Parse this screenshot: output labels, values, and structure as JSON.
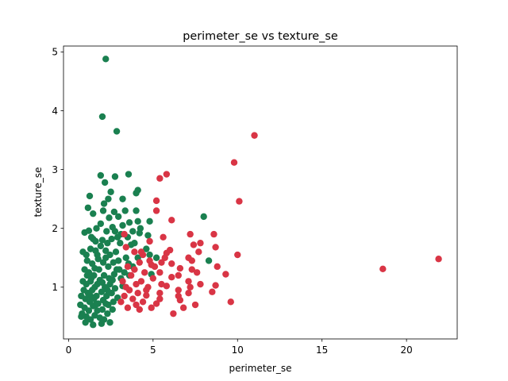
{
  "chart_data": {
    "type": "scatter",
    "title": "perimeter_se vs texture_se",
    "xlabel": "perimeter_se",
    "ylabel": "texture_se",
    "xlim": [
      -0.3,
      23.0
    ],
    "ylim": [
      0.12,
      5.1
    ],
    "xticks": [
      0,
      5,
      10,
      15,
      20
    ],
    "yticks": [
      1,
      2,
      3,
      4,
      5
    ],
    "grid": false,
    "series": [
      {
        "color": "#1a8050",
        "points": [
          [
            2.2,
            4.88
          ],
          [
            2.0,
            3.9
          ],
          [
            2.85,
            3.65
          ],
          [
            1.9,
            2.9
          ],
          [
            2.75,
            2.88
          ],
          [
            3.55,
            2.92
          ],
          [
            2.15,
            2.78
          ],
          [
            1.25,
            2.55
          ],
          [
            2.5,
            2.62
          ],
          [
            2.35,
            2.5
          ],
          [
            3.2,
            2.5
          ],
          [
            4.1,
            2.65
          ],
          [
            4.0,
            2.6
          ],
          [
            1.15,
            2.35
          ],
          [
            2.1,
            2.42
          ],
          [
            2.7,
            2.28
          ],
          [
            3.35,
            2.3
          ],
          [
            4.0,
            2.3
          ],
          [
            1.45,
            2.25
          ],
          [
            2.05,
            2.3
          ],
          [
            2.4,
            2.18
          ],
          [
            2.95,
            2.2
          ],
          [
            3.6,
            2.1
          ],
          [
            4.1,
            2.12
          ],
          [
            4.8,
            2.12
          ],
          [
            8.0,
            2.2
          ],
          [
            1.9,
            2.08
          ],
          [
            2.6,
            2.02
          ],
          [
            3.2,
            2.05
          ],
          [
            4.25,
            2.0
          ],
          [
            0.95,
            1.93
          ],
          [
            1.2,
            1.96
          ],
          [
            1.65,
            2.0
          ],
          [
            2.25,
            1.95
          ],
          [
            2.75,
            1.95
          ],
          [
            3.1,
            1.9
          ],
          [
            3.5,
            1.85
          ],
          [
            3.8,
            1.95
          ],
          [
            4.2,
            1.92
          ],
          [
            1.45,
            1.82
          ],
          [
            2.0,
            1.8
          ],
          [
            2.55,
            1.82
          ],
          [
            3.05,
            1.75
          ],
          [
            3.7,
            1.72
          ],
          [
            4.7,
            1.88
          ],
          [
            4.6,
            1.65
          ],
          [
            0.85,
            1.6
          ],
          [
            1.05,
            1.55
          ],
          [
            1.3,
            1.65
          ],
          [
            1.6,
            1.62
          ],
          [
            1.9,
            1.7
          ],
          [
            2.2,
            1.62
          ],
          [
            2.45,
            1.55
          ],
          [
            2.8,
            1.6
          ],
          [
            3.4,
            1.5
          ],
          [
            4.1,
            1.5
          ],
          [
            4.8,
            1.55
          ],
          [
            5.2,
            1.5
          ],
          [
            8.3,
            1.45
          ],
          [
            1.1,
            1.45
          ],
          [
            1.4,
            1.4
          ],
          [
            1.75,
            1.48
          ],
          [
            2.05,
            1.42
          ],
          [
            2.35,
            1.35
          ],
          [
            2.65,
            1.42
          ],
          [
            3.0,
            1.3
          ],
          [
            3.3,
            1.25
          ],
          [
            3.8,
            1.35
          ],
          [
            4.9,
            1.22
          ],
          [
            0.95,
            1.3
          ],
          [
            1.2,
            1.25
          ],
          [
            1.5,
            1.2
          ],
          [
            1.8,
            1.3
          ],
          [
            2.1,
            1.2
          ],
          [
            2.4,
            1.15
          ],
          [
            2.7,
            1.22
          ],
          [
            3.1,
            1.15
          ],
          [
            3.6,
            1.2
          ],
          [
            0.85,
            1.1
          ],
          [
            1.05,
            1.05
          ],
          [
            1.3,
            1.1
          ],
          [
            1.55,
            1.0
          ],
          [
            1.85,
            1.12
          ],
          [
            2.15,
            1.0
          ],
          [
            2.45,
            1.05
          ],
          [
            2.75,
            0.98
          ],
          [
            3.2,
            1.02
          ],
          [
            0.9,
            0.95
          ],
          [
            1.15,
            0.9
          ],
          [
            1.4,
            0.95
          ],
          [
            1.65,
            0.85
          ],
          [
            1.95,
            0.92
          ],
          [
            2.25,
            0.85
          ],
          [
            2.55,
            0.9
          ],
          [
            2.9,
            0.82
          ],
          [
            0.75,
            0.85
          ],
          [
            1.0,
            0.8
          ],
          [
            1.25,
            0.75
          ],
          [
            1.5,
            0.8
          ],
          [
            1.75,
            0.72
          ],
          [
            2.05,
            0.78
          ],
          [
            2.35,
            0.7
          ],
          [
            2.65,
            0.75
          ],
          [
            0.7,
            0.7
          ],
          [
            0.95,
            0.65
          ],
          [
            1.2,
            0.6
          ],
          [
            1.45,
            0.68
          ],
          [
            1.7,
            0.6
          ],
          [
            2.0,
            0.62
          ],
          [
            2.3,
            0.55
          ],
          [
            2.6,
            0.62
          ],
          [
            0.8,
            0.55
          ],
          [
            1.05,
            0.5
          ],
          [
            1.3,
            0.45
          ],
          [
            1.55,
            0.52
          ],
          [
            1.85,
            0.48
          ],
          [
            2.1,
            0.45
          ],
          [
            0.75,
            0.5
          ],
          [
            1.0,
            0.4
          ],
          [
            1.45,
            0.36
          ],
          [
            1.95,
            0.38
          ],
          [
            2.45,
            0.4
          ],
          [
            1.6,
            1.78
          ],
          [
            2.9,
            1.85
          ],
          [
            3.9,
            1.75
          ],
          [
            1.35,
            1.85
          ],
          [
            2.3,
            1.75
          ],
          [
            1.7,
            1.55
          ],
          [
            2.2,
            1.5
          ],
          [
            2.95,
            1.45
          ],
          [
            3.55,
            1.4
          ],
          [
            1.55,
            1.32
          ],
          [
            2.85,
            1.3
          ],
          [
            1.35,
            1.15
          ],
          [
            2.0,
            1.08
          ],
          [
            2.6,
            1.12
          ],
          [
            1.1,
            1.2
          ],
          [
            1.7,
            1.05
          ],
          [
            2.3,
            0.95
          ],
          [
            1.3,
            0.85
          ],
          [
            1.6,
            0.7
          ],
          [
            2.2,
            0.72
          ]
        ]
      },
      {
        "color": "#d93545",
        "points": [
          [
            11.0,
            3.58
          ],
          [
            9.8,
            3.12
          ],
          [
            5.8,
            2.92
          ],
          [
            5.4,
            2.85
          ],
          [
            10.1,
            2.46
          ],
          [
            5.2,
            2.47
          ],
          [
            5.2,
            2.3
          ],
          [
            6.1,
            2.14
          ],
          [
            3.3,
            1.9
          ],
          [
            7.2,
            1.9
          ],
          [
            8.6,
            1.9
          ],
          [
            5.6,
            1.85
          ],
          [
            4.8,
            1.78
          ],
          [
            7.8,
            1.75
          ],
          [
            7.4,
            1.72
          ],
          [
            8.7,
            1.68
          ],
          [
            3.4,
            1.68
          ],
          [
            6.0,
            1.63
          ],
          [
            7.7,
            1.6
          ],
          [
            5.8,
            1.58
          ],
          [
            4.4,
            1.55
          ],
          [
            5.7,
            1.5
          ],
          [
            10.0,
            1.55
          ],
          [
            7.1,
            1.5
          ],
          [
            21.9,
            1.48
          ],
          [
            7.3,
            1.45
          ],
          [
            5.5,
            1.42
          ],
          [
            4.9,
            1.38
          ],
          [
            6.6,
            1.32
          ],
          [
            8.8,
            1.35
          ],
          [
            7.3,
            1.3
          ],
          [
            18.6,
            1.31
          ],
          [
            5.4,
            1.25
          ],
          [
            7.6,
            1.25
          ],
          [
            9.3,
            1.22
          ],
          [
            6.5,
            1.2
          ],
          [
            6.1,
            1.17
          ],
          [
            7.1,
            1.1
          ],
          [
            4.3,
            1.1
          ],
          [
            5.8,
            1.02
          ],
          [
            7.2,
            1.0
          ],
          [
            7.8,
            1.05
          ],
          [
            8.7,
            1.03
          ],
          [
            6.5,
            0.95
          ],
          [
            7.1,
            0.9
          ],
          [
            8.5,
            0.92
          ],
          [
            5.4,
            0.9
          ],
          [
            4.6,
            0.86
          ],
          [
            6.5,
            0.85
          ],
          [
            5.4,
            0.8
          ],
          [
            6.6,
            0.78
          ],
          [
            9.6,
            0.75
          ],
          [
            7.5,
            0.7
          ],
          [
            6.8,
            0.65
          ],
          [
            6.2,
            0.55
          ],
          [
            3.5,
            1.35
          ],
          [
            3.9,
            1.3
          ],
          [
            4.2,
            1.42
          ],
          [
            4.5,
            1.25
          ],
          [
            3.7,
            1.2
          ],
          [
            4.0,
            1.05
          ],
          [
            4.7,
            1.0
          ],
          [
            3.6,
            0.95
          ],
          [
            4.1,
            0.9
          ],
          [
            3.8,
            0.8
          ],
          [
            4.4,
            0.75
          ],
          [
            3.3,
            0.85
          ],
          [
            4.0,
            0.7
          ],
          [
            3.5,
            0.65
          ],
          [
            4.6,
            0.95
          ],
          [
            5.0,
            1.15
          ],
          [
            4.9,
            0.65
          ],
          [
            3.2,
            1.1
          ],
          [
            4.3,
            1.6
          ],
          [
            3.9,
            1.6
          ],
          [
            5.1,
            1.35
          ],
          [
            6.1,
            1.4
          ],
          [
            5.5,
            1.05
          ],
          [
            4.8,
            1.45
          ],
          [
            3.1,
            0.75
          ],
          [
            3.4,
            1.0
          ],
          [
            4.2,
            0.62
          ],
          [
            5.2,
            0.72
          ]
        ]
      }
    ]
  }
}
